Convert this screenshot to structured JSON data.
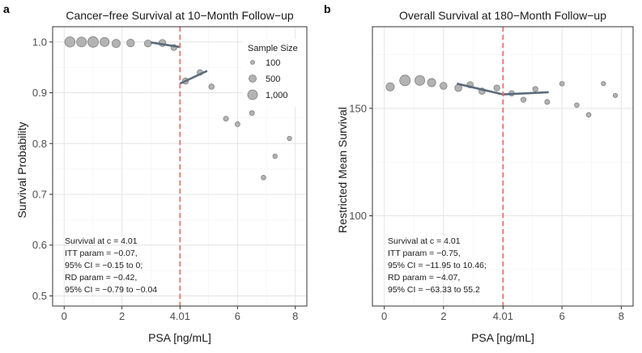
{
  "chart_data": [
    {
      "panel_label": "a",
      "type": "scatter",
      "title": "Cancer−free Survival at 10−Month Follow−up",
      "xlabel": "PSA [ng/mL]",
      "ylabel": "Survival Probability",
      "xlim": [
        -0.4,
        8.4
      ],
      "ylim": [
        0.48,
        1.03
      ],
      "x_ticks": [
        0,
        2,
        4.01,
        6,
        8
      ],
      "x_tick_labels": [
        "0",
        "2",
        "4.01",
        "6",
        "8"
      ],
      "y_ticks": [
        0.5,
        0.6,
        0.7,
        0.8,
        0.9,
        1.0
      ],
      "y_tick_labels": [
        "0.5",
        "0.6",
        "0.7",
        "0.8",
        "0.9",
        "1.0"
      ],
      "cutoff": 4.01,
      "points": [
        {
          "x": 0.2,
          "y": 1.0,
          "n": 1000
        },
        {
          "x": 0.6,
          "y": 1.0,
          "n": 900
        },
        {
          "x": 1.0,
          "y": 1.0,
          "n": 1100
        },
        {
          "x": 1.4,
          "y": 1.0,
          "n": 700
        },
        {
          "x": 1.8,
          "y": 0.997,
          "n": 500
        },
        {
          "x": 2.3,
          "y": 0.998,
          "n": 400
        },
        {
          "x": 2.9,
          "y": 0.997,
          "n": 300
        },
        {
          "x": 3.4,
          "y": 0.998,
          "n": 300
        },
        {
          "x": 3.8,
          "y": 0.989,
          "n": 150
        },
        {
          "x": 4.2,
          "y": 0.923,
          "n": 180
        },
        {
          "x": 4.7,
          "y": 0.94,
          "n": 120
        },
        {
          "x": 5.1,
          "y": 0.912,
          "n": 100
        },
        {
          "x": 5.6,
          "y": 0.849,
          "n": 60
        },
        {
          "x": 6.0,
          "y": 0.838,
          "n": 60
        },
        {
          "x": 6.5,
          "y": 0.86,
          "n": 50
        },
        {
          "x": 6.9,
          "y": 0.733,
          "n": 40
        },
        {
          "x": 7.3,
          "y": 0.775,
          "n": 30
        },
        {
          "x": 7.8,
          "y": 0.81,
          "n": 30
        }
      ],
      "fit_lines": [
        {
          "x": [
            3.0,
            4.01
          ],
          "y": [
            0.999,
            0.99
          ]
        },
        {
          "x": [
            4.01,
            4.95
          ],
          "y": [
            0.918,
            0.943
          ]
        }
      ],
      "legend": {
        "title": "Sample Size",
        "entries": [
          {
            "label": "100",
            "n": 100
          },
          {
            "label": "500",
            "n": 500
          },
          {
            "label": "1,000",
            "n": 1000
          }
        ]
      },
      "annotation": [
        "Survival at c = 4.01",
        "ITT param = −0.07,",
        "95% CI = −0.15 to 0;",
        "RD param = −0.42,",
        "95% CI = −0.79 to −0.04"
      ]
    },
    {
      "panel_label": "b",
      "type": "scatter",
      "title": "Overall Survival at 180−Month Follow−up",
      "xlabel": "PSA [ng/mL]",
      "ylabel": "Restricted Mean Survival",
      "xlim": [
        -0.4,
        8.4
      ],
      "ylim": [
        58,
        188
      ],
      "x_ticks": [
        0,
        2,
        4.01,
        6,
        8
      ],
      "x_tick_labels": [
        "0",
        "2",
        "4.01",
        "6",
        "8"
      ],
      "y_ticks": [
        100,
        150
      ],
      "y_tick_labels": [
        "100",
        "150"
      ],
      "cutoff": 4.01,
      "points": [
        {
          "x": 0.2,
          "y": 160,
          "n": 500
        },
        {
          "x": 0.7,
          "y": 163,
          "n": 1100
        },
        {
          "x": 1.2,
          "y": 163,
          "n": 900
        },
        {
          "x": 1.6,
          "y": 162,
          "n": 500
        },
        {
          "x": 2.0,
          "y": 160.5,
          "n": 300
        },
        {
          "x": 2.5,
          "y": 159.5,
          "n": 300
        },
        {
          "x": 2.9,
          "y": 161,
          "n": 200
        },
        {
          "x": 3.3,
          "y": 158,
          "n": 200
        },
        {
          "x": 3.8,
          "y": 159.5,
          "n": 150
        },
        {
          "x": 4.3,
          "y": 157,
          "n": 100
        },
        {
          "x": 4.7,
          "y": 154,
          "n": 80
        },
        {
          "x": 5.1,
          "y": 159,
          "n": 80
        },
        {
          "x": 5.5,
          "y": 153,
          "n": 60
        },
        {
          "x": 6.0,
          "y": 161.5,
          "n": 40
        },
        {
          "x": 6.5,
          "y": 151.5,
          "n": 40
        },
        {
          "x": 6.9,
          "y": 147,
          "n": 40
        },
        {
          "x": 7.4,
          "y": 161.5,
          "n": 25
        },
        {
          "x": 7.8,
          "y": 156,
          "n": 25
        }
      ],
      "fit_lines": [
        {
          "x": [
            2.45,
            4.01
          ],
          "y": [
            161.5,
            156.5
          ]
        },
        {
          "x": [
            4.01,
            5.55
          ],
          "y": [
            156.5,
            157.5
          ]
        }
      ],
      "annotation": [
        "Survival at c = 4.01",
        "ITT param = −0.75,",
        "95% CI = −11.95 to 10.46;",
        "RD param = −4.07,",
        "95% CI = −63.33 to 55.2"
      ]
    }
  ]
}
